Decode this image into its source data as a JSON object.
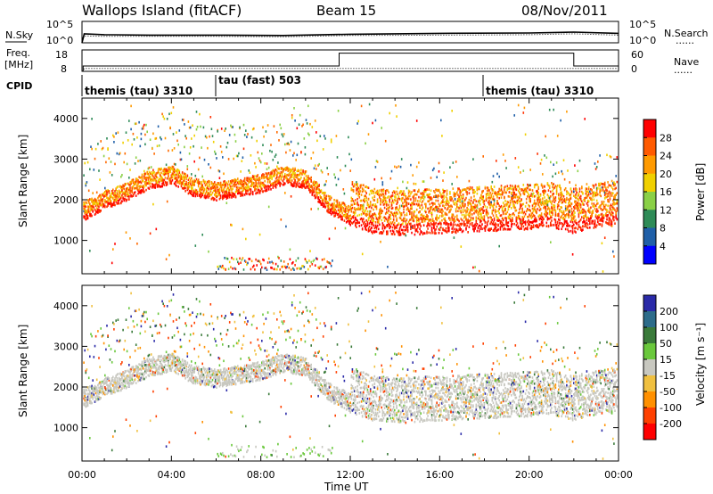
{
  "header": {
    "title": "Wallops Island (fitACF)",
    "beam": "Beam 15",
    "date": "08/Nov/2011"
  },
  "noise_panel": {
    "left_label": "N.Sky",
    "right_label": "N.Search",
    "left_ticks": [
      "10^5",
      "10^0"
    ],
    "right_ticks": [
      "10^5",
      "10^0"
    ],
    "right_legend_line": "......"
  },
  "freq_panel": {
    "left_label_line1": "Freq.",
    "left_label_line2": "[MHz]",
    "right_label": "Nave",
    "left_ticks": [
      "18",
      "8"
    ],
    "right_ticks": [
      "60",
      "0"
    ],
    "right_legend_line": "......"
  },
  "cpid": {
    "label": "CPID",
    "segments": [
      {
        "name": "themis (tau) 3310",
        "start_hour": 0
      },
      {
        "name": "tau (fast) 503",
        "start_hour": 6
      },
      {
        "name": "themis (tau) 3310",
        "start_hour": 18
      }
    ]
  },
  "power_panel": {
    "ylabel": "Slant Range [km]",
    "colorbar_label": "Power [dB]",
    "colorbar_ticks": [
      "28",
      "24",
      "20",
      "16",
      "12",
      "8",
      "4"
    ],
    "colorbar_colors": [
      "#ff0000",
      "#ff5a00",
      "#ff9a00",
      "#f0d000",
      "#8ad046",
      "#2e8b57",
      "#1f5fa8",
      "#0000ff"
    ]
  },
  "velocity_panel": {
    "ylabel": "Slant Range [km]",
    "colorbar_label": "Velocity [m s⁻¹]",
    "colorbar_ticks": [
      "200",
      "100",
      "50",
      "15",
      "-15",
      "-50",
      "-100",
      "-200"
    ],
    "colorbar_colors": [
      "#2a2aa8",
      "#2d6c8a",
      "#3a7a3a",
      "#6ac83c",
      "#c8c8c0",
      "#f0c040",
      "#ff9000",
      "#ff4000",
      "#ff0000"
    ]
  },
  "x_axis": {
    "label": "Time UT",
    "ticks": [
      "00:00",
      "04:00",
      "08:00",
      "12:00",
      "16:00",
      "20:00",
      "00:00"
    ]
  },
  "chart_data": [
    {
      "type": "line",
      "name": "noise",
      "x_unit": "hours UT",
      "x": [
        0,
        0.1,
        1,
        3,
        6,
        9,
        12,
        16,
        20,
        22,
        24
      ],
      "series": [
        {
          "name": "N.Sky",
          "values": [
            0.0,
            2.1,
            1.9,
            1.8,
            1.8,
            1.7,
            2.0,
            2.2,
            2.3,
            2.5,
            2.2
          ]
        },
        {
          "name": "N.Search",
          "values": [
            0.0,
            1.6,
            1.5,
            1.5,
            1.5,
            1.4,
            1.7,
            1.8,
            1.9,
            2.1,
            1.8
          ]
        }
      ],
      "ylim": [
        0,
        5
      ]
    },
    {
      "type": "line",
      "name": "frequency-nave",
      "x_unit": "hours UT",
      "series": [
        {
          "name": "Freq.",
          "x": [
            0,
            0.05,
            0.05,
            11.5,
            11.5,
            22,
            22,
            24
          ],
          "values": [
            8,
            8,
            10.5,
            10.5,
            16.5,
            16.5,
            10.5,
            10.5
          ]
        },
        {
          "name": "Nave",
          "x": [
            0,
            0.1,
            24
          ],
          "values": [
            0,
            8,
            8
          ]
        }
      ],
      "ylim": [
        8,
        18
      ]
    },
    {
      "type": "heatmap",
      "name": "power",
      "x_unit": "hours UT",
      "y_unit": "km",
      "xlim": [
        0,
        24
      ],
      "ylim": [
        180,
        4500
      ],
      "ridge_x": [
        0,
        1,
        2,
        3,
        4,
        5,
        6,
        7,
        8,
        9,
        10,
        11,
        12,
        13,
        14,
        16,
        18,
        20,
        21,
        22,
        23,
        24
      ],
      "ridge_range_km": [
        1500,
        1800,
        2000,
        2300,
        2400,
        2100,
        2000,
        2100,
        2200,
        2400,
        2300,
        1700,
        1400,
        1200,
        1150,
        1200,
        1250,
        1300,
        1350,
        1200,
        1350,
        1400
      ]
    },
    {
      "type": "heatmap",
      "name": "velocity",
      "x_unit": "hours UT",
      "y_unit": "km",
      "xlim": [
        0,
        24
      ],
      "ylim": [
        180,
        4500
      ]
    }
  ]
}
